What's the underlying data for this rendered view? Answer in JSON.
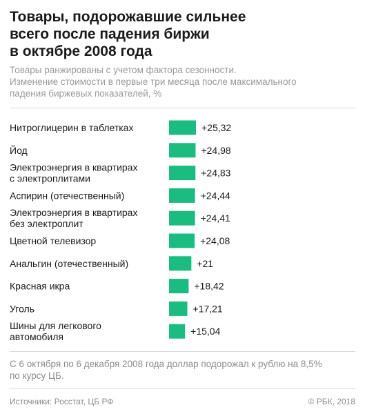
{
  "header": {
    "title_lines": [
      "Товары, подорожавшие сильнее",
      "всего после падения биржи",
      "в октябре 2008 года"
    ],
    "subtitle_lines": [
      "Товары ранжированы с учетом фактора сезонности.",
      "Изменение стоимости в первые три месяца после максимального",
      "падения биржевых показателей, %"
    ]
  },
  "chart_data": {
    "type": "bar",
    "orientation": "horizontal",
    "categories": [
      [
        "Нитроглицерин в таблетках"
      ],
      [
        "Йод"
      ],
      [
        "Электроэнергия в квартирах",
        "с электроплитами"
      ],
      [
        "Аспирин (отечественный)"
      ],
      [
        "Электроэнергия в квартирах",
        "без электроплит"
      ],
      [
        "Цветной телевизор"
      ],
      [
        "Анальгин (отечественный)"
      ],
      [
        "Красная икра"
      ],
      [
        "Уголь"
      ],
      [
        "Шины для легкового",
        "автомобиля"
      ]
    ],
    "values": [
      25.32,
      24.98,
      24.83,
      24.44,
      24.41,
      24.08,
      21,
      18.42,
      17.21,
      15.04
    ],
    "value_labels": [
      "+25,32",
      "+24,98",
      "+24,83",
      "+24,44",
      "+24,41",
      "+24,08",
      "+21",
      "+18,42",
      "+17,21",
      "+15,04"
    ],
    "bar_color": "#1abc80",
    "xlim": [
      0,
      25.32
    ]
  },
  "note": {
    "lines": [
      "С 6 октября по 6 декабря 2008 года доллар подорожал к рублю на 8,5%",
      "по курсу ЦБ."
    ]
  },
  "footer": {
    "source": "Источники: Росстат, ЦБ РФ",
    "copyright": "© РБК, 2018"
  }
}
